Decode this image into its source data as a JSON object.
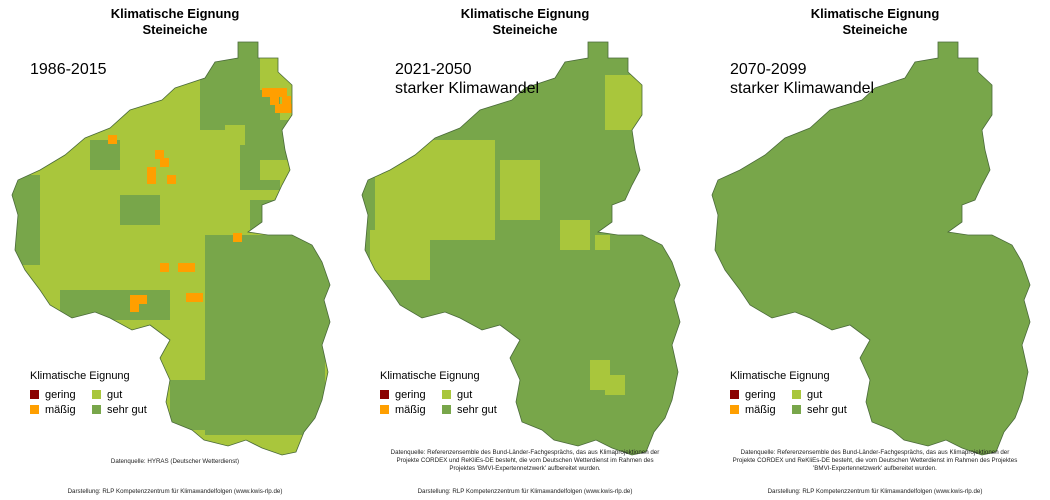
{
  "title_line1": "Klimatische Eignung",
  "title_line2": "Steineiche",
  "colors": {
    "gering": "#8b0000",
    "maessig": "#ff9f00",
    "gut": "#a9c63c",
    "sehr_gut": "#78a64a",
    "border": "#4a6a3a"
  },
  "legend": {
    "title": "Klimatische Eignung",
    "items": [
      {
        "label": "gering",
        "color": "#8b0000"
      },
      {
        "label": "gut",
        "color": "#a9c63c"
      },
      {
        "label": "mäßig",
        "color": "#ff9f00"
      },
      {
        "label": "sehr gut",
        "color": "#78a64a"
      }
    ]
  },
  "panels": [
    {
      "period": "1986-2015",
      "period_sub": "",
      "source_text": "Datenquelle: HYRAS (Deutscher Wetterdienst)",
      "credit": "Darstellung: RLP Kompetenzzentrum für Klimawandelfolgen (www.kwis-rlp.de)"
    },
    {
      "period": "2021-2050",
      "period_sub": "starker Klimawandel",
      "source_text": "Datenquelle: Referenzensemble des Bund-Länder-Fachgesprächs, das aus Klimaprojektionen der Projekte CORDEX und ReKliEs-DE besteht, die vom Deutschen Wetterdienst im Rahmen des Projektes 'BMVI-Expertennetzwerk' aufbereitet wurden.",
      "credit": "Darstellung: RLP Kompetenzzentrum für Klimawandelfolgen (www.kwis-rlp.de)"
    },
    {
      "period": "2070-2099",
      "period_sub": "starker Klimawandel",
      "source_text": "Datenquelle: Referenzensemble des Bund-Länder-Fachgesprächs, das aus Klimaprojektionen der Projekte CORDEX und ReKliEs-DE besteht, die vom Deutschen Wetterdienst im Rahmen des Projektes 'BMVI-Expertennetzwerk' aufbereitet wurden.",
      "credit": "Darstellung: RLP Kompetenzzentrum für Klimawandelfolgen (www.kwis-rlp.de)"
    }
  ]
}
